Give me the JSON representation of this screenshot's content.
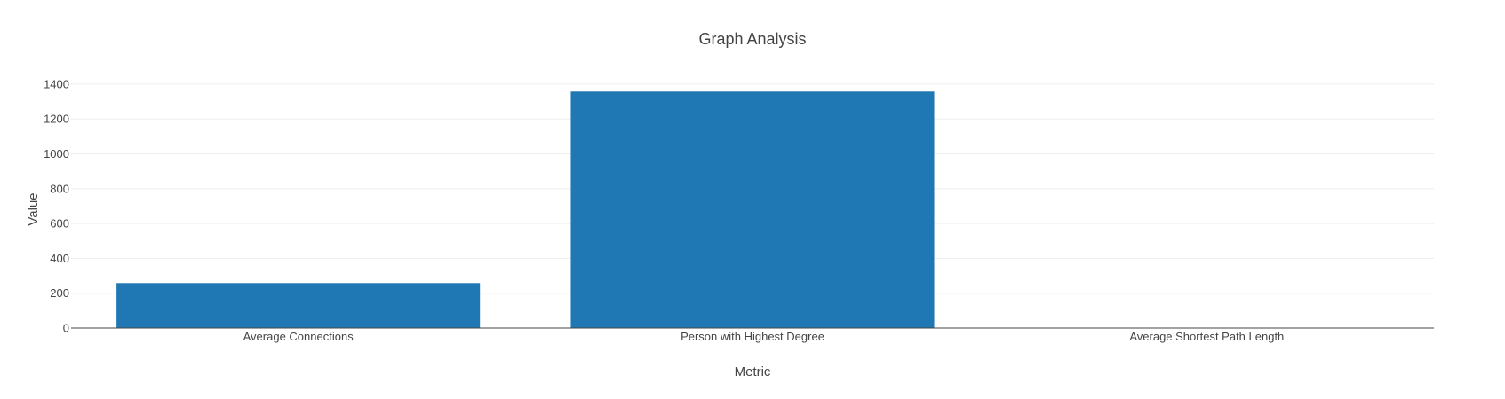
{
  "chart_data": {
    "type": "bar",
    "title": "Graph Analysis",
    "xlabel": "Metric",
    "ylabel": "Value",
    "categories": [
      "Average Connections",
      "Person with Highest Degree",
      "Average Shortest Path Length"
    ],
    "values": [
      258,
      1357,
      2.5
    ],
    "ylim": [
      0,
      1450
    ],
    "yticks": [
      0,
      200,
      400,
      600,
      800,
      1000,
      1200,
      1400
    ],
    "grid": true,
    "legend": "none",
    "bar_color": "#1f77b4"
  }
}
